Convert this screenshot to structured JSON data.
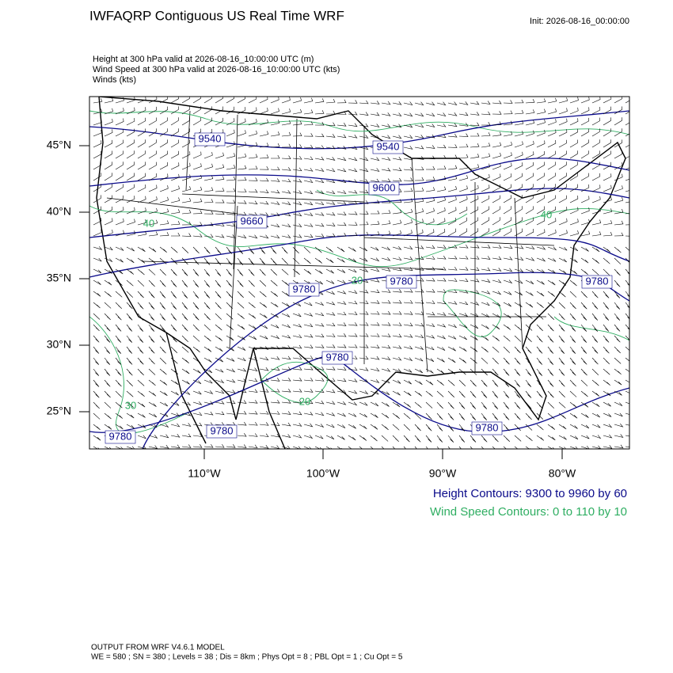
{
  "header": {
    "title": "IWFAQRP Contiguous US Real Time WRF",
    "init": "Init: 2026-08-16_00:00:00"
  },
  "fields": [
    "Height at 300 hPa valid at 2026-08-16_10:00:00 UTC   (m)",
    "Wind Speed at 300 hPa valid at 2026-08-16_10:00:00 UTC   (kts)",
    "Winds   (kts)"
  ],
  "map": {
    "lat_ticks": [
      "45°N",
      "40°N",
      "35°N",
      "30°N",
      "25°N"
    ],
    "lon_ticks": [
      "110°W",
      "100°W",
      "90°W",
      "80°W"
    ],
    "height_labels": [
      "9540",
      "9540",
      "9600",
      "9660",
      "9780",
      "9780",
      "9780",
      "9780",
      "9780",
      "9780",
      "9780"
    ],
    "speed_labels": [
      "40",
      "20",
      "30",
      "20",
      "40"
    ]
  },
  "legend": {
    "height": "Height Contours: 9300 to 9960 by 60",
    "speed": "Wind Speed Contours: 0 to 110 by 10"
  },
  "footer": {
    "model": "OUTPUT FROM WRF V4.6.1 MODEL",
    "settings": "WE = 580 ; SN = 380 ; Levels = 38 ; Dis = 8km ; Phys Opt = 8 ; PBL Opt = 1 ; Cu Opt = 5"
  }
}
